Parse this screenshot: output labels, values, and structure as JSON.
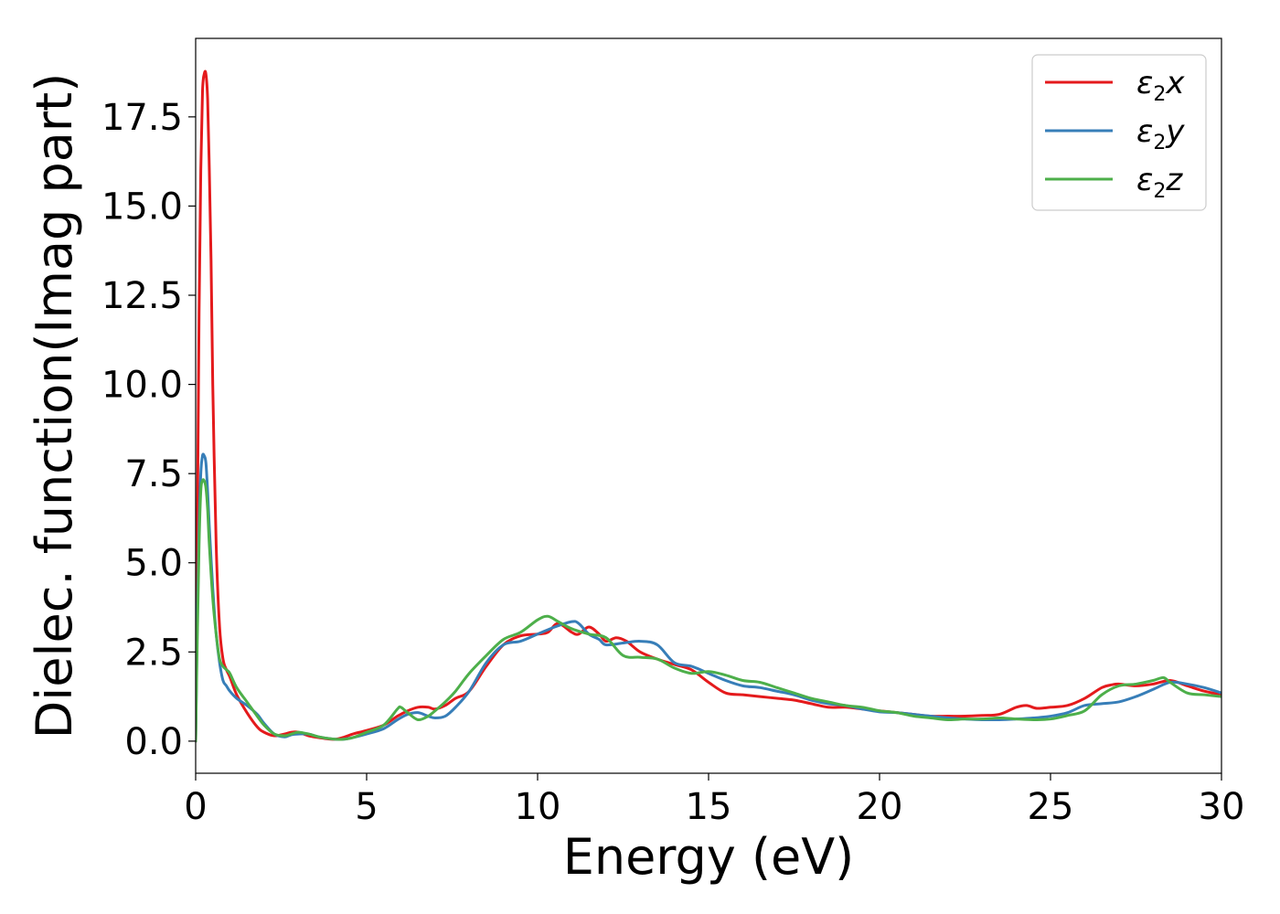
{
  "chart_data": {
    "type": "line",
    "title": "",
    "xlabel": "Energy (eV)",
    "ylabel": "Dielec. function(Imag part)",
    "xlim": [
      0,
      30
    ],
    "ylim": [
      -0.9,
      19.7
    ],
    "xticks": [
      0,
      5,
      10,
      15,
      20,
      25,
      30
    ],
    "xtick_labels": [
      "0",
      "5",
      "10",
      "15",
      "20",
      "25",
      "30"
    ],
    "yticks": [
      0.0,
      2.5,
      5.0,
      7.5,
      10.0,
      12.5,
      15.0,
      17.5
    ],
    "ytick_labels": [
      "0.0",
      "2.5",
      "5.0",
      "7.5",
      "10.0",
      "12.5",
      "15.0",
      "17.5"
    ],
    "grid": false,
    "legend_position": "top-right",
    "series": [
      {
        "name": "x",
        "legend": {
          "base": "ε",
          "sub": "2",
          "suffix": "x"
        },
        "color": "#e41a1c",
        "x": [
          0,
          0.05,
          0.1,
          0.15,
          0.2,
          0.25,
          0.3,
          0.35,
          0.4,
          0.45,
          0.5,
          0.6,
          0.7,
          0.8,
          0.9,
          1.0,
          1.2,
          1.5,
          1.8,
          2.0,
          2.3,
          2.6,
          2.8,
          3.0,
          3.3,
          3.6,
          4.0,
          4.3,
          4.6,
          5.0,
          5.5,
          5.9,
          6.2,
          6.5,
          6.8,
          7.0,
          7.3,
          7.6,
          8.0,
          8.5,
          9.0,
          9.5,
          10.0,
          10.3,
          10.6,
          11.0,
          11.2,
          11.5,
          11.8,
          12.0,
          12.3,
          12.6,
          13.0,
          13.5,
          14.0,
          14.5,
          15.0,
          15.5,
          16.0,
          16.5,
          17.0,
          17.5,
          18.0,
          18.5,
          19.0,
          19.5,
          20.0,
          20.5,
          21.0,
          21.5,
          22.0,
          22.5,
          23.0,
          23.5,
          24.0,
          24.3,
          24.6,
          25.0,
          25.5,
          26.0,
          26.5,
          26.8,
          27.0,
          27.5,
          28.0,
          28.5,
          29.0,
          29.5,
          30.0
        ],
        "y": [
          0.0,
          6.0,
          12.0,
          16.0,
          18.2,
          18.7,
          18.7,
          18.0,
          16.0,
          13.5,
          10.0,
          5.5,
          3.2,
          2.3,
          2.0,
          1.8,
          1.3,
          0.8,
          0.4,
          0.25,
          0.15,
          0.2,
          0.25,
          0.25,
          0.15,
          0.1,
          0.05,
          0.1,
          0.2,
          0.3,
          0.45,
          0.7,
          0.85,
          0.95,
          0.95,
          0.9,
          1.0,
          1.2,
          1.4,
          2.1,
          2.7,
          2.95,
          3.0,
          3.05,
          3.3,
          3.05,
          3.0,
          3.2,
          3.0,
          2.8,
          2.9,
          2.8,
          2.5,
          2.3,
          2.15,
          2.0,
          1.65,
          1.35,
          1.3,
          1.25,
          1.2,
          1.15,
          1.05,
          0.95,
          0.95,
          0.9,
          0.85,
          0.8,
          0.75,
          0.7,
          0.7,
          0.7,
          0.72,
          0.75,
          0.95,
          1.0,
          0.92,
          0.95,
          1.0,
          1.2,
          1.5,
          1.58,
          1.6,
          1.55,
          1.6,
          1.7,
          1.55,
          1.4,
          1.3
        ]
      },
      {
        "name": "y",
        "legend": {
          "base": "ε",
          "sub": "2",
          "suffix": "y"
        },
        "color": "#377eb8",
        "x": [
          0,
          0.05,
          0.1,
          0.15,
          0.2,
          0.25,
          0.3,
          0.35,
          0.4,
          0.5,
          0.6,
          0.7,
          0.8,
          0.9,
          1.0,
          1.2,
          1.5,
          1.8,
          2.0,
          2.3,
          2.6,
          2.8,
          3.0,
          3.3,
          3.6,
          4.0,
          4.3,
          4.6,
          5.0,
          5.5,
          5.9,
          6.2,
          6.5,
          6.8,
          7.0,
          7.3,
          7.6,
          8.0,
          8.5,
          9.0,
          9.5,
          10.0,
          10.5,
          11.0,
          11.2,
          11.5,
          11.8,
          12.0,
          12.5,
          13.0,
          13.5,
          14.0,
          14.5,
          15.0,
          15.5,
          16.0,
          16.5,
          17.0,
          17.5,
          18.0,
          18.5,
          19.0,
          19.5,
          20.0,
          20.5,
          21.0,
          21.5,
          22.0,
          22.5,
          23.0,
          23.5,
          24.0,
          24.5,
          25.0,
          25.5,
          26.0,
          26.5,
          27.0,
          27.5,
          28.0,
          28.5,
          29.0,
          29.5,
          30.0
        ],
        "y": [
          0.0,
          3.5,
          6.0,
          7.5,
          8.0,
          8.0,
          7.8,
          7.0,
          6.0,
          4.3,
          3.0,
          2.2,
          1.7,
          1.55,
          1.4,
          1.2,
          1.0,
          0.75,
          0.5,
          0.2,
          0.12,
          0.18,
          0.2,
          0.2,
          0.12,
          0.06,
          0.05,
          0.1,
          0.2,
          0.35,
          0.6,
          0.75,
          0.8,
          0.7,
          0.65,
          0.7,
          0.95,
          1.4,
          2.2,
          2.7,
          2.8,
          3.0,
          3.2,
          3.35,
          3.3,
          3.0,
          2.85,
          2.7,
          2.75,
          2.8,
          2.7,
          2.2,
          2.1,
          1.9,
          1.7,
          1.55,
          1.5,
          1.4,
          1.3,
          1.15,
          1.05,
          1.0,
          0.9,
          0.82,
          0.8,
          0.75,
          0.7,
          0.65,
          0.62,
          0.6,
          0.6,
          0.62,
          0.65,
          0.7,
          0.8,
          1.0,
          1.05,
          1.1,
          1.25,
          1.45,
          1.65,
          1.6,
          1.5,
          1.35
        ]
      },
      {
        "name": "z",
        "legend": {
          "base": "ε",
          "sub": "2",
          "suffix": "z"
        },
        "color": "#4daf4a",
        "x": [
          0,
          0.05,
          0.1,
          0.15,
          0.2,
          0.25,
          0.3,
          0.35,
          0.4,
          0.5,
          0.6,
          0.7,
          0.8,
          0.9,
          1.0,
          1.2,
          1.5,
          1.8,
          2.0,
          2.3,
          2.6,
          2.8,
          3.0,
          3.3,
          3.6,
          4.0,
          4.3,
          4.6,
          5.0,
          5.5,
          5.9,
          6.0,
          6.2,
          6.5,
          6.8,
          7.0,
          7.3,
          7.6,
          8.0,
          8.5,
          9.0,
          9.5,
          10.0,
          10.3,
          10.6,
          11.0,
          11.5,
          12.0,
          12.5,
          13.0,
          13.5,
          14.0,
          14.5,
          15.0,
          15.5,
          16.0,
          16.5,
          17.0,
          17.5,
          18.0,
          18.5,
          19.0,
          19.5,
          20.0,
          20.5,
          21.0,
          21.5,
          22.0,
          22.5,
          23.0,
          23.5,
          24.0,
          24.5,
          25.0,
          25.5,
          26.0,
          26.5,
          27.0,
          27.5,
          28.0,
          28.3,
          28.5,
          29.0,
          29.5,
          30.0
        ],
        "y": [
          0.0,
          3.0,
          5.5,
          7.0,
          7.3,
          7.3,
          7.1,
          6.5,
          5.5,
          4.0,
          3.0,
          2.3,
          2.1,
          2.0,
          1.9,
          1.5,
          1.1,
          0.7,
          0.45,
          0.2,
          0.15,
          0.2,
          0.25,
          0.2,
          0.12,
          0.06,
          0.05,
          0.1,
          0.25,
          0.45,
          0.9,
          0.95,
          0.8,
          0.6,
          0.7,
          0.85,
          1.1,
          1.4,
          1.9,
          2.4,
          2.85,
          3.05,
          3.4,
          3.5,
          3.35,
          3.15,
          3.0,
          2.9,
          2.4,
          2.35,
          2.3,
          2.05,
          1.9,
          1.95,
          1.85,
          1.7,
          1.65,
          1.5,
          1.35,
          1.2,
          1.1,
          1.0,
          0.95,
          0.85,
          0.8,
          0.7,
          0.65,
          0.6,
          0.62,
          0.62,
          0.65,
          0.62,
          0.6,
          0.62,
          0.72,
          0.85,
          1.3,
          1.55,
          1.6,
          1.7,
          1.78,
          1.65,
          1.35,
          1.3,
          1.25
        ]
      }
    ]
  }
}
